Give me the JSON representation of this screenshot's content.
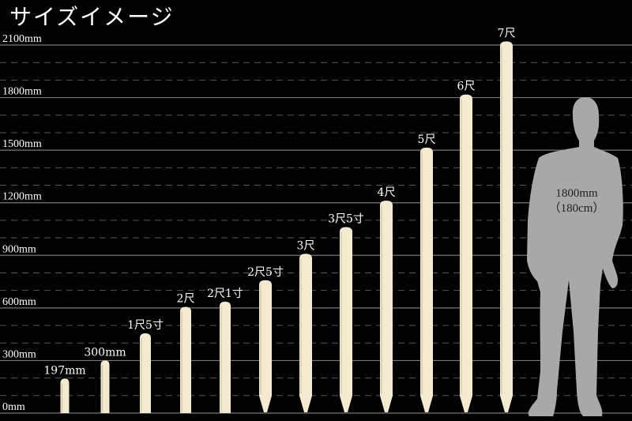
{
  "title": "サイズイメージ",
  "chart_data": {
    "type": "bar",
    "title": "サイズイメージ",
    "unit": "mm",
    "ylim": [
      0,
      2100
    ],
    "yticks": [
      0,
      300,
      600,
      900,
      1200,
      1500,
      1800,
      2100
    ],
    "ytick_labels": [
      "0mm",
      "300mm",
      "600mm",
      "900mm",
      "1200mm",
      "1500mm",
      "1800mm",
      "2100mm"
    ],
    "minor_grid_step": 100,
    "grid": true,
    "categories": [
      "197mm",
      "300mm",
      "1尺5寸",
      "2尺",
      "2尺1寸",
      "2尺5寸",
      "3尺",
      "3尺5寸",
      "4尺",
      "5尺",
      "6尺",
      "7尺"
    ],
    "values": [
      197,
      300,
      455,
      606,
      636,
      758,
      909,
      1061,
      1212,
      1515,
      1818,
      2121
    ],
    "pointed": [
      false,
      false,
      false,
      false,
      false,
      true,
      true,
      true,
      true,
      true,
      true,
      true
    ],
    "reference": {
      "label_line1": "1800mm",
      "label_line2": "（180cm）",
      "value": 1800
    },
    "colors": {
      "stake": "#f3ead0",
      "person": "#a8a8a8",
      "grid": "#777777",
      "background": "#000000"
    }
  }
}
